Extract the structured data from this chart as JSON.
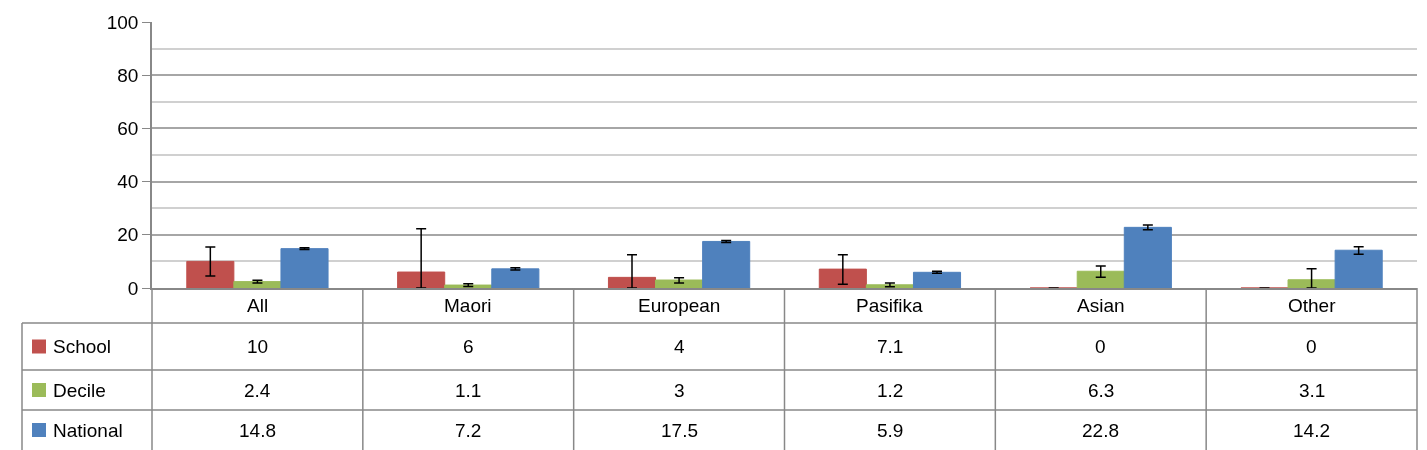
{
  "chart_data": {
    "type": "bar",
    "categories": [
      "All",
      "Maori",
      "European",
      "Pasifika",
      "Asian",
      "Other"
    ],
    "series": [
      {
        "name": "School",
        "color": "#c0504d",
        "values": [
          10,
          6,
          4,
          7.1,
          0,
          0
        ],
        "errors": [
          [
            4.5,
            15.4
          ],
          [
            0,
            22.3
          ],
          [
            0,
            12.5
          ],
          [
            1.4,
            12.5
          ],
          null,
          null
        ]
      },
      {
        "name": "Decile",
        "color": "#9bbb59",
        "values": [
          2.4,
          1.1,
          3,
          1.2,
          6.3,
          3.1
        ],
        "errors": [
          [
            1.9,
            2.9
          ],
          [
            0.6,
            1.6
          ],
          [
            1.9,
            3.9
          ],
          [
            0.5,
            1.9
          ],
          [
            4.0,
            8.3
          ],
          [
            0,
            7.2
          ]
        ]
      },
      {
        "name": "National",
        "color": "#4f81bd",
        "values": [
          14.8,
          7.2,
          17.5,
          5.9,
          22.8,
          14.2
        ],
        "errors": [
          [
            14.5,
            15.1
          ],
          [
            6.8,
            7.6
          ],
          [
            17.1,
            17.9
          ],
          [
            5.5,
            6.3
          ],
          [
            21.9,
            23.7
          ],
          [
            12.7,
            15.5
          ]
        ]
      }
    ],
    "ylim": [
      0,
      100
    ],
    "yticks": [
      0,
      20,
      40,
      60,
      80,
      100
    ],
    "grid": "y",
    "legend": "bottom left",
    "data_labels": true
  }
}
